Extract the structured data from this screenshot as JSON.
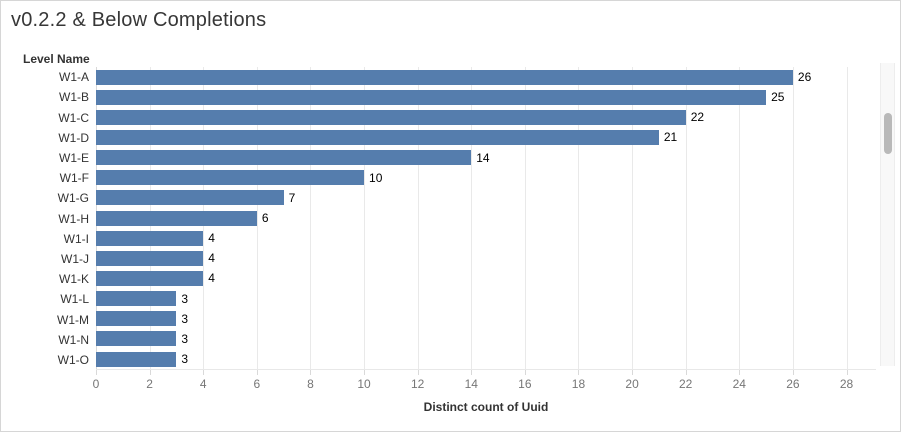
{
  "title": "v0.2.2 & Below Completions",
  "row_header": "Level Name",
  "colors": {
    "bar": "#557dad",
    "gridline": "#e9e9e9",
    "zero_line": "#d9d9d9",
    "tick_label": "#767676",
    "value_label": "#000000",
    "title_text": "#373737",
    "scrollbar_thumb": "#b9b9b9"
  },
  "chart_data": {
    "type": "bar",
    "orientation": "horizontal",
    "title": "v0.2.2 & Below Completions",
    "categories": [
      "W1-A",
      "W1-B",
      "W1-C",
      "W1-D",
      "W1-E",
      "W1-F",
      "W1-G",
      "W1-H",
      "W1-I",
      "W1-J",
      "W1-K",
      "W1-L",
      "W1-M",
      "W1-N",
      "W1-O"
    ],
    "values": [
      26,
      25,
      22,
      21,
      14,
      10,
      7,
      6,
      4,
      4,
      4,
      3,
      3,
      3,
      3
    ],
    "xlabel": "Distinct count of Uuid",
    "ylabel": "Level Name",
    "xlim": [
      0,
      29.1
    ],
    "xticks": [
      0,
      2,
      4,
      6,
      8,
      10,
      12,
      14,
      16,
      18,
      20,
      22,
      24,
      26,
      28
    ],
    "grid": true,
    "legend": "none",
    "bar_color": "#557dad"
  }
}
